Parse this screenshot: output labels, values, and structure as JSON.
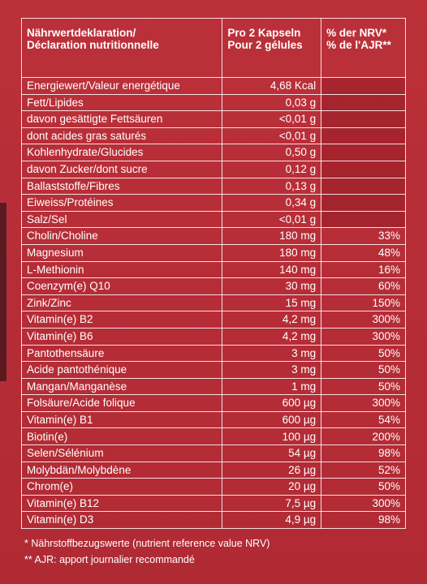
{
  "header": {
    "col1_line1": "Nährwertdeklaration/",
    "col1_line2": "Déclaration nutritionnelle",
    "col2_line1": "Pro 2 Kapseln",
    "col2_line2": "Pour 2 gélules",
    "col3_line1": "% der NRV*",
    "col3_line2": "% de l'AJR**"
  },
  "rows": [
    {
      "name": "Energiewert/Valeur energétique",
      "amount": "4,68 Kcal",
      "nrv": ""
    },
    {
      "name": "Fett/Lipides",
      "amount": "0,03 g",
      "nrv": ""
    },
    {
      "name": "davon gesättigte Fettsäuren",
      "amount": "<0,01 g",
      "nrv": ""
    },
    {
      "name": "dont acides gras saturés",
      "amount": "<0,01 g",
      "nrv": ""
    },
    {
      "name": "Kohlenhydrate/Glucides",
      "amount": "0,50 g",
      "nrv": ""
    },
    {
      "name": "davon Zucker/dont sucre",
      "amount": "0,12 g",
      "nrv": ""
    },
    {
      "name": "Ballaststoffe/Fibres",
      "amount": "0,13 g",
      "nrv": ""
    },
    {
      "name": "Eiweiss/Protéines",
      "amount": "0,34 g",
      "nrv": ""
    },
    {
      "name": "Salz/Sel",
      "amount": "<0,01 g",
      "nrv": ""
    },
    {
      "name": "Cholin/Choline",
      "amount": "180 mg",
      "nrv": "33%"
    },
    {
      "name": "Magnesium",
      "amount": "180 mg",
      "nrv": "48%"
    },
    {
      "name": "L-Methionin",
      "amount": "140 mg",
      "nrv": "16%"
    },
    {
      "name": "Coenzym(e) Q10",
      "amount": "30 mg",
      "nrv": "60%"
    },
    {
      "name": "Zink/Zinc",
      "amount": "15 mg",
      "nrv": "150%"
    },
    {
      "name": "Vitamin(e) B2",
      "amount": "4,2 mg",
      "nrv": "300%"
    },
    {
      "name": "Vitamin(e) B6",
      "amount": "4,2 mg",
      "nrv": "300%"
    },
    {
      "name": "Pantothensäure",
      "amount": "3 mg",
      "nrv": "50%"
    },
    {
      "name": "Acide pantothénique",
      "amount": "3 mg",
      "nrv": "50%"
    },
    {
      "name": "Mangan/Manganèse",
      "amount": "1 mg",
      "nrv": "50%"
    },
    {
      "name": "Folsäure/Acide folique",
      "amount": "600 µg",
      "nrv": "300%"
    },
    {
      "name": "Vitamin(e) B1",
      "amount": "600 µg",
      "nrv": "54%"
    },
    {
      "name": "Biotin(e)",
      "amount": "100 µg",
      "nrv": "200%"
    },
    {
      "name": "Selen/Sélénium",
      "amount": "54 µg",
      "nrv": "98%"
    },
    {
      "name": "Molybdän/Molybdène",
      "amount": "26 µg",
      "nrv": "52%"
    },
    {
      "name": "Chrom(e)",
      "amount": "20 µg",
      "nrv": "50%"
    },
    {
      "name": "Vitamin(e) B12",
      "amount": "7,5 µg",
      "nrv": "300%"
    },
    {
      "name": "Vitamin(e) D3",
      "amount": "4,9 µg",
      "nrv": "98%"
    }
  ],
  "footnotes": {
    "nrv": "* Nährstoffbezugswerte (nutrient reference value NRV)",
    "ajr": "** AJR: apport journalier recommandé"
  }
}
